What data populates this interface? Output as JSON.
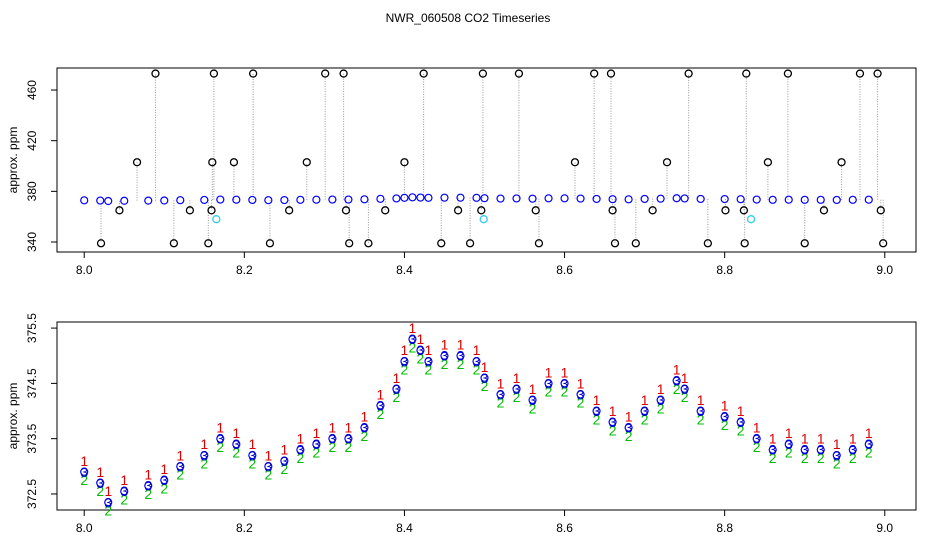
{
  "title": "NWR_060508  CO2 Timeseries",
  "chart_data": [
    {
      "type": "spike",
      "ylabel": "approx. ppm",
      "xlim": [
        7.966,
        9.039
      ],
      "ylim": [
        332.1,
        477.4
      ],
      "xticks": [
        {
          "value": 8,
          "label": "8.0"
        },
        {
          "value": 8.2,
          "label": "8.2"
        },
        {
          "value": 8.4,
          "label": "8.4"
        },
        {
          "value": 8.6,
          "label": "8.6"
        },
        {
          "value": 8.8,
          "label": "8.8"
        },
        {
          "value": 9,
          "label": "9.0"
        }
      ],
      "yticks": [
        340,
        380,
        420,
        460
      ],
      "color": "#0000ff",
      "outlier_color": "#000000",
      "flag_color": "#33ccee",
      "x": [
        8.0,
        8.02,
        8.03,
        8.05,
        8.08,
        8.1,
        8.12,
        8.15,
        8.17,
        8.19,
        8.21,
        8.23,
        8.25,
        8.27,
        8.29,
        8.31,
        8.33,
        8.35,
        8.37,
        8.39,
        8.4,
        8.41,
        8.42,
        8.43,
        8.45,
        8.47,
        8.49,
        8.5,
        8.52,
        8.54,
        8.56,
        8.58,
        8.6,
        8.62,
        8.64,
        8.66,
        8.68,
        8.7,
        8.72,
        8.74,
        8.75,
        8.77,
        8.8,
        8.82,
        8.84,
        8.86,
        8.88,
        8.9,
        8.92,
        8.94,
        8.96,
        8.98
      ],
      "values": [
        372.9,
        372.7,
        372.35,
        372.55,
        372.65,
        372.75,
        373.0,
        373.2,
        373.5,
        373.4,
        373.2,
        373.0,
        373.1,
        373.3,
        373.4,
        373.5,
        373.5,
        373.7,
        374.1,
        374.4,
        374.9,
        375.3,
        375.1,
        374.9,
        375.0,
        375.0,
        374.9,
        374.6,
        374.3,
        374.4,
        374.2,
        374.5,
        374.5,
        374.3,
        374.0,
        373.8,
        373.7,
        374.0,
        374.2,
        374.55,
        374.4,
        374.0,
        373.9,
        373.8,
        373.5,
        373.3,
        373.4,
        373.3,
        373.3,
        373.2,
        373.3,
        373.4
      ],
      "outlier_x": [
        8.089,
        8.162,
        8.211,
        8.301,
        8.324,
        8.424,
        8.498,
        8.543,
        8.637,
        8.658,
        8.755,
        8.827,
        8.879,
        8.969,
        8.991,
        8.066,
        8.16,
        8.187,
        8.278,
        8.4,
        8.613,
        8.728,
        8.854,
        8.946,
        8.044,
        8.132,
        8.159,
        8.256,
        8.327,
        8.376,
        8.467,
        8.496,
        8.564,
        8.66,
        8.71,
        8.801,
        8.824,
        8.924,
        8.995,
        8.021,
        8.112,
        8.155,
        8.232,
        8.331,
        8.355,
        8.446,
        8.482,
        8.568,
        8.663,
        8.689,
        8.779,
        8.825,
        8.9,
        8.998
      ],
      "outlier_values": [
        473,
        473,
        473,
        473,
        473,
        473,
        473,
        473,
        473,
        473,
        473,
        473,
        473,
        473,
        473,
        403,
        403,
        403,
        403,
        403,
        403,
        403,
        403,
        403,
        365,
        365,
        365,
        365,
        365,
        365,
        365,
        365,
        365,
        365,
        365,
        365,
        365,
        365,
        365,
        339,
        339,
        339,
        339,
        339,
        339,
        339,
        339,
        339,
        339,
        339,
        339,
        339,
        339,
        339
      ],
      "flag_x": [
        8.165,
        8.499,
        8.833
      ],
      "flag_values": [
        358,
        358,
        358
      ]
    },
    {
      "type": "digits",
      "ylabel": "approx. ppm",
      "xlim": [
        7.966,
        9.039
      ],
      "ylim": [
        372.21,
        375.61
      ],
      "xticks": [
        {
          "value": 8,
          "label": "8.0"
        },
        {
          "value": 8.2,
          "label": "8.2"
        },
        {
          "value": 8.4,
          "label": "8.4"
        },
        {
          "value": 8.6,
          "label": "8.6"
        },
        {
          "value": 8.8,
          "label": "8.8"
        },
        {
          "value": 9,
          "label": "9.0"
        }
      ],
      "yticks": [
        372.5,
        373.5,
        374.5,
        375.5
      ],
      "x": [
        8.0,
        8.02,
        8.03,
        8.05,
        8.08,
        8.1,
        8.12,
        8.15,
        8.17,
        8.19,
        8.21,
        8.23,
        8.25,
        8.27,
        8.29,
        8.31,
        8.33,
        8.35,
        8.37,
        8.39,
        8.4,
        8.41,
        8.42,
        8.43,
        8.45,
        8.47,
        8.49,
        8.5,
        8.52,
        8.54,
        8.56,
        8.58,
        8.6,
        8.62,
        8.64,
        8.66,
        8.68,
        8.7,
        8.72,
        8.74,
        8.75,
        8.77,
        8.8,
        8.82,
        8.84,
        8.86,
        8.88,
        8.9,
        8.92,
        8.94,
        8.96,
        8.98
      ],
      "circle_color": "#0000ff",
      "series": [
        {
          "name": "1",
          "color": "#dd0000",
          "values": [
            373.1,
            372.9,
            372.55,
            372.75,
            372.85,
            372.95,
            373.2,
            373.4,
            373.7,
            373.6,
            373.4,
            373.2,
            373.3,
            373.5,
            373.6,
            373.7,
            373.7,
            373.9,
            374.3,
            374.6,
            375.1,
            375.5,
            375.3,
            375.1,
            375.2,
            375.2,
            375.1,
            374.8,
            374.5,
            374.6,
            374.4,
            374.7,
            374.7,
            374.5,
            374.2,
            374.0,
            373.9,
            374.2,
            374.4,
            374.75,
            374.6,
            374.2,
            374.1,
            374.0,
            373.7,
            373.5,
            373.6,
            373.5,
            373.5,
            373.4,
            373.5,
            373.6
          ]
        },
        {
          "name": "2",
          "color": "#00bb00",
          "values": [
            372.75,
            372.55,
            372.2,
            372.4,
            372.5,
            372.6,
            372.85,
            373.05,
            373.35,
            373.25,
            373.05,
            372.85,
            372.95,
            373.15,
            373.25,
            373.35,
            373.35,
            373.55,
            373.95,
            374.25,
            374.75,
            375.15,
            374.95,
            374.75,
            374.85,
            374.85,
            374.75,
            374.45,
            374.15,
            374.25,
            374.05,
            374.35,
            374.35,
            374.15,
            373.85,
            373.65,
            373.55,
            373.85,
            374.05,
            374.4,
            374.25,
            373.85,
            373.75,
            373.65,
            373.35,
            373.15,
            373.25,
            373.15,
            373.15,
            373.05,
            373.15,
            373.25
          ]
        },
        {
          "name": "3",
          "color": "#0000cc",
          "values": [
            372.9,
            372.7,
            372.35,
            372.55,
            372.65,
            372.75,
            373.0,
            373.2,
            373.5,
            373.4,
            373.2,
            373.0,
            373.1,
            373.3,
            373.4,
            373.5,
            373.5,
            373.7,
            374.1,
            374.4,
            374.9,
            375.3,
            375.1,
            374.9,
            375.0,
            375.0,
            374.9,
            374.6,
            374.3,
            374.4,
            374.2,
            374.5,
            374.5,
            374.3,
            374.0,
            373.8,
            373.7,
            374.0,
            374.2,
            374.55,
            374.4,
            374.0,
            373.9,
            373.8,
            373.5,
            373.3,
            373.4,
            373.3,
            373.3,
            373.2,
            373.3,
            373.4
          ]
        }
      ]
    }
  ]
}
